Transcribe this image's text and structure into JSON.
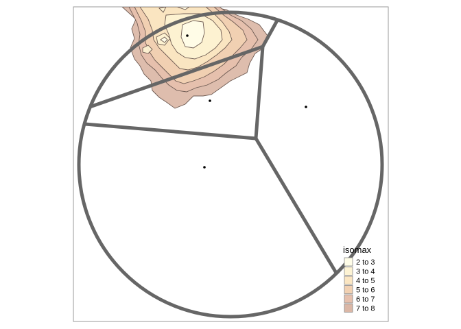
{
  "legend": {
    "title": "isomax",
    "items": [
      {
        "label": "2 to 3",
        "color": "#fffde8"
      },
      {
        "label": "3 to 4",
        "color": "#fdf3d3"
      },
      {
        "label": "4 to 5",
        "color": "#fbe6c2"
      },
      {
        "label": "5 to 6",
        "color": "#f2d1b2"
      },
      {
        "label": "6 to 7",
        "color": "#e6c0ad"
      },
      {
        "label": "7 to 8",
        "color": "#dbb7a6"
      }
    ]
  },
  "colors": {
    "frame": "#9a9a9a",
    "circle_stroke": "#666666",
    "contour_stroke": "#6d5a52",
    "point": "#000000"
  },
  "map": {
    "regions": [
      "north-west-sliver",
      "west-wedge",
      "east-wedge",
      "south-west-wedge"
    ],
    "point_count": 4
  }
}
